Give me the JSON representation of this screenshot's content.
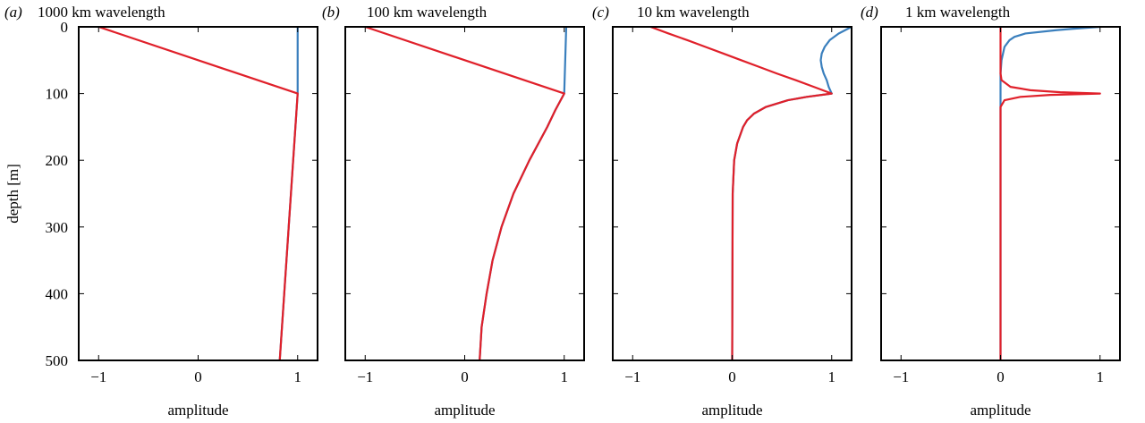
{
  "chart_data": [
    {
      "type": "line",
      "panel_label": "(a)",
      "title": "1000 km wavelength",
      "xlabel": "amplitude",
      "ylabel": "depth [m]",
      "show_ytick_labels": true,
      "invert_y": true,
      "xlim": [
        -1.2,
        1.2
      ],
      "xticks": [
        {
          "value": -1,
          "label": "−1"
        },
        0,
        1
      ],
      "ylim": [
        0,
        500
      ],
      "yticks": [
        0,
        100,
        200,
        300,
        400,
        500
      ],
      "y": [
        0,
        100,
        500
      ],
      "series": [
        {
          "color": "#3a7fbd",
          "values": [
            1,
            1,
            0.82
          ]
        },
        {
          "color": "#e0202a",
          "values": [
            -1,
            1,
            0.82
          ]
        }
      ]
    },
    {
      "type": "line",
      "panel_label": "(b)",
      "title": "100 km wavelength",
      "xlabel": "amplitude",
      "show_ytick_labels": false,
      "invert_y": true,
      "xlim": [
        -1.2,
        1.2
      ],
      "xticks": [
        {
          "value": -1,
          "label": "−1"
        },
        0,
        1
      ],
      "ylim": [
        0,
        500
      ],
      "yticks": [
        0,
        100,
        200,
        300,
        400,
        500
      ],
      "y": [
        0,
        100,
        125,
        150,
        200,
        250,
        300,
        350,
        400,
        450,
        500
      ],
      "series": [
        {
          "color": "#3a7fbd",
          "values": [
            1.02,
            1,
            0.91,
            0.83,
            0.65,
            0.49,
            0.37,
            0.28,
            0.22,
            0.17,
            0.15
          ]
        },
        {
          "color": "#e0202a",
          "values": [
            -1,
            1,
            0.91,
            0.83,
            0.65,
            0.49,
            0.37,
            0.28,
            0.22,
            0.17,
            0.15
          ]
        }
      ]
    },
    {
      "type": "line",
      "panel_label": "(c)",
      "title": "10 km wavelength",
      "xlabel": "amplitude",
      "show_ytick_labels": false,
      "invert_y": true,
      "xlim": [
        -1.2,
        1.2
      ],
      "xticks": [
        {
          "value": -1,
          "label": "−1"
        },
        0,
        1
      ],
      "ylim": [
        0,
        500
      ],
      "yticks": [
        0,
        100,
        200,
        300,
        400,
        500
      ],
      "y": [
        0,
        10,
        20,
        30,
        40,
        50,
        60,
        70,
        80,
        90,
        100,
        105,
        110,
        120,
        130,
        140,
        150,
        175,
        200,
        250,
        500
      ],
      "series": [
        {
          "color": "#3a7fbd",
          "values": [
            1.2,
            1.07,
            0.98,
            0.93,
            0.9,
            0.89,
            0.9,
            0.92,
            0.95,
            0.97,
            1,
            0.75,
            0.56,
            0.34,
            0.22,
            0.15,
            0.11,
            0.05,
            0.02,
            0.005,
            0
          ]
        },
        {
          "color": "#e0202a",
          "values": [
            -0.82,
            -0.64,
            -0.45,
            -0.27,
            -0.09,
            0.09,
            0.27,
            0.45,
            0.64,
            0.82,
            1,
            0.75,
            0.56,
            0.34,
            0.22,
            0.15,
            0.11,
            0.05,
            0.02,
            0.005,
            0
          ]
        }
      ]
    },
    {
      "type": "line",
      "panel_label": "(d)",
      "title": "1 km wavelength",
      "xlabel": "amplitude",
      "show_ytick_labels": false,
      "invert_y": true,
      "xlim": [
        -1.2,
        1.2
      ],
      "xticks": [
        {
          "value": -1,
          "label": "−1"
        },
        0,
        1
      ],
      "ylim": [
        0,
        500
      ],
      "yticks": [
        0,
        100,
        200,
        300,
        400,
        500
      ],
      "y": [
        0,
        3,
        5,
        10,
        15,
        20,
        30,
        50,
        70,
        80,
        90,
        95,
        98,
        100,
        102,
        105,
        110,
        120,
        500
      ],
      "series": [
        {
          "color": "#3a7fbd",
          "values": [
            1,
            0.72,
            0.56,
            0.25,
            0.14,
            0.09,
            0.04,
            0.01,
            0,
            0,
            0,
            0,
            0,
            0,
            0,
            0,
            0,
            0,
            0
          ]
        },
        {
          "color": "#e0202a",
          "values": [
            0,
            0,
            0,
            0,
            0,
            0,
            0,
            0,
            0,
            0.01,
            0.1,
            0.3,
            0.6,
            1,
            0.5,
            0.2,
            0.04,
            0,
            0
          ]
        }
      ]
    }
  ]
}
